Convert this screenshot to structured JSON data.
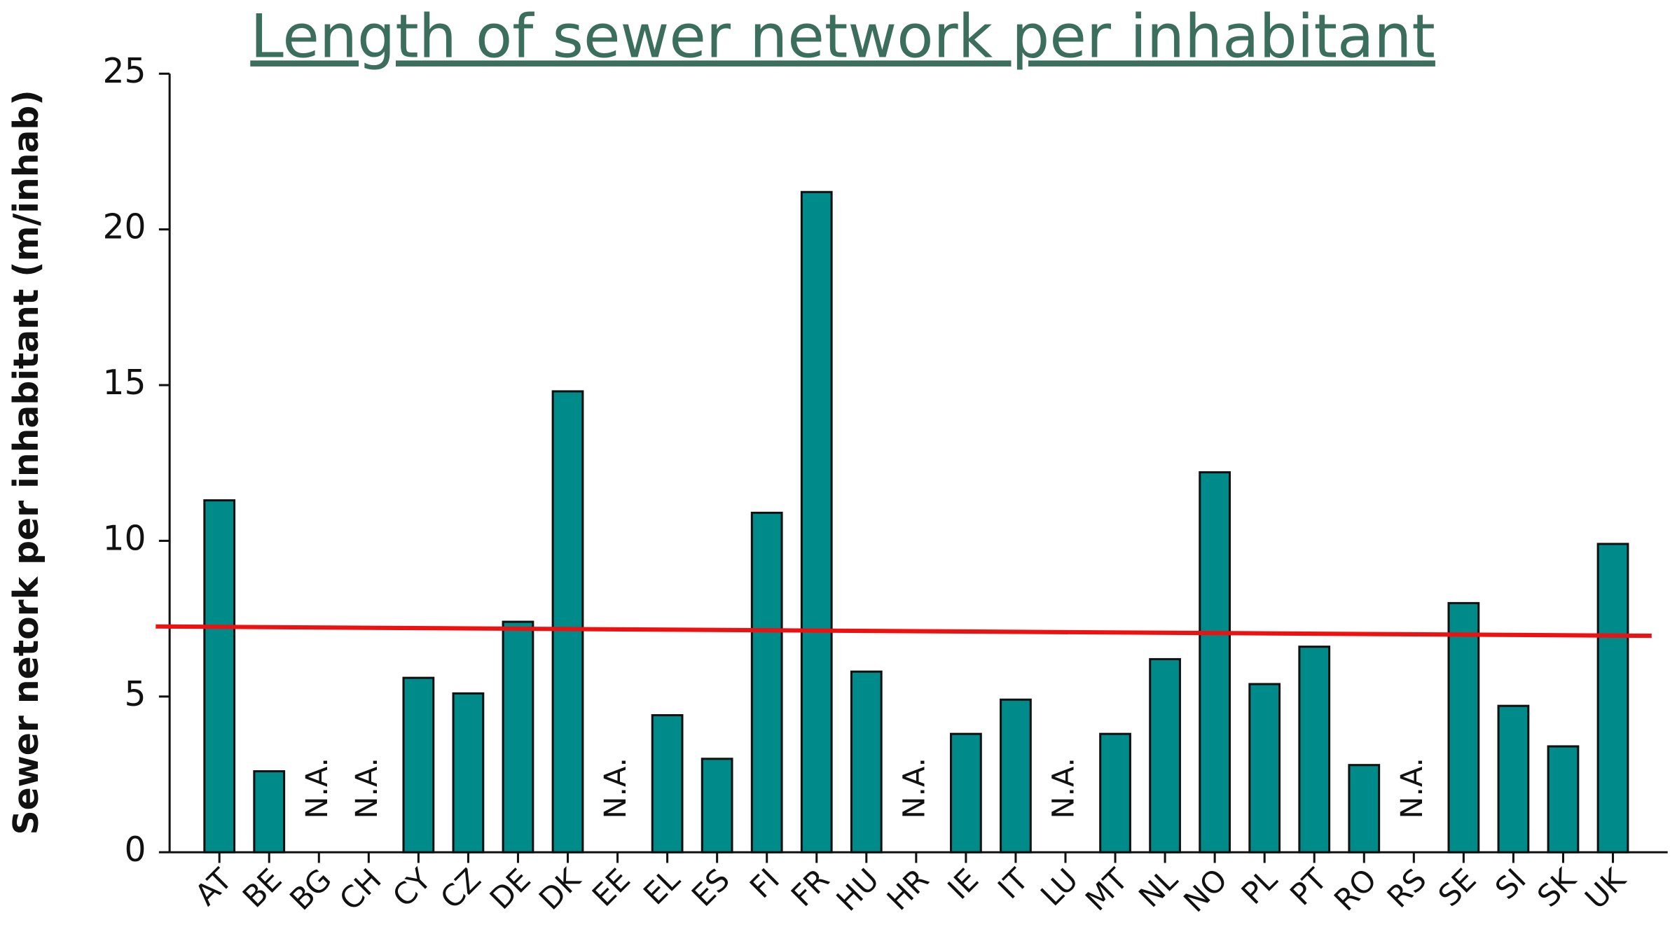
{
  "chart_data": {
    "type": "bar",
    "title": "Length of sewer network per inhabitant",
    "y_label": "Sewer netork per inhabitant (m/inhab)",
    "categories": [
      "AT",
      "BE",
      "BG",
      "CH",
      "CY",
      "CZ",
      "DE",
      "DK",
      "EE",
      "EL",
      "ES",
      "FI",
      "FR",
      "HU",
      "HR",
      "IE",
      "IT",
      "LU",
      "MT",
      "NL",
      "NO",
      "PL",
      "PT",
      "RO",
      "RS",
      "SE",
      "SI",
      "SK",
      "UK"
    ],
    "values": [
      11.3,
      2.6,
      null,
      null,
      5.6,
      5.1,
      7.4,
      14.8,
      null,
      4.4,
      3.0,
      10.9,
      21.2,
      5.8,
      null,
      3.8,
      4.9,
      null,
      3.8,
      6.2,
      12.2,
      5.4,
      6.6,
      2.8,
      null,
      8.0,
      4.7,
      3.4,
      9.9
    ],
    "value_labels": [
      null,
      null,
      "N.A.",
      "N.A.",
      null,
      null,
      null,
      null,
      "N.A.",
      null,
      null,
      null,
      null,
      null,
      "N.A.",
      null,
      null,
      "N.A.",
      null,
      null,
      null,
      null,
      null,
      null,
      "N.A.",
      null,
      null,
      null,
      null
    ],
    "color": "#008b8b",
    "trend_line": {
      "color": "#ee1111",
      "values": [
        7.25,
        6.95
      ]
    },
    "ylim": [
      0,
      25
    ],
    "yticks": [
      0,
      5,
      10,
      15,
      20,
      25
    ]
  }
}
